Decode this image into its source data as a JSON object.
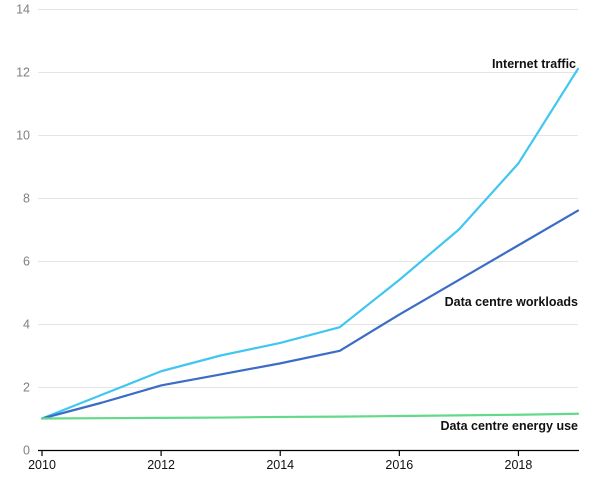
{
  "chart_data": {
    "type": "line",
    "title": "",
    "xlabel": "",
    "ylabel": "",
    "x": [
      2010,
      2011,
      2012,
      2013,
      2014,
      2015,
      2016,
      2017,
      2018,
      2019
    ],
    "series": [
      {
        "name": "Internet traffic",
        "color": "#41c6f1",
        "values": [
          1.0,
          1.75,
          2.5,
          3.0,
          3.4,
          3.9,
          5.4,
          7.0,
          9.1,
          12.1
        ]
      },
      {
        "name": "Data centre workloads",
        "color": "#3b6dc7",
        "values": [
          1.0,
          1.5,
          2.05,
          2.4,
          2.75,
          3.15,
          4.3,
          5.4,
          6.5,
          7.6
        ]
      },
      {
        "name": "Data centre energy use",
        "color": "#62da89",
        "values": [
          1.0,
          1.01,
          1.02,
          1.03,
          1.05,
          1.06,
          1.08,
          1.1,
          1.12,
          1.15
        ]
      }
    ],
    "ylim": [
      0,
      14
    ],
    "yticks": [
      0,
      2,
      4,
      6,
      8,
      10,
      12,
      14
    ],
    "xticks": [
      2010,
      2012,
      2014,
      2016,
      2018
    ],
    "grid": "horizontal",
    "legend": "inline-labels-right",
    "style": {
      "background": "#ffffff",
      "grid_color": "#e4e4e4",
      "axis_color": "#000000",
      "xtick_label_color": "#111111",
      "ytick_label_color": "#808080"
    }
  }
}
